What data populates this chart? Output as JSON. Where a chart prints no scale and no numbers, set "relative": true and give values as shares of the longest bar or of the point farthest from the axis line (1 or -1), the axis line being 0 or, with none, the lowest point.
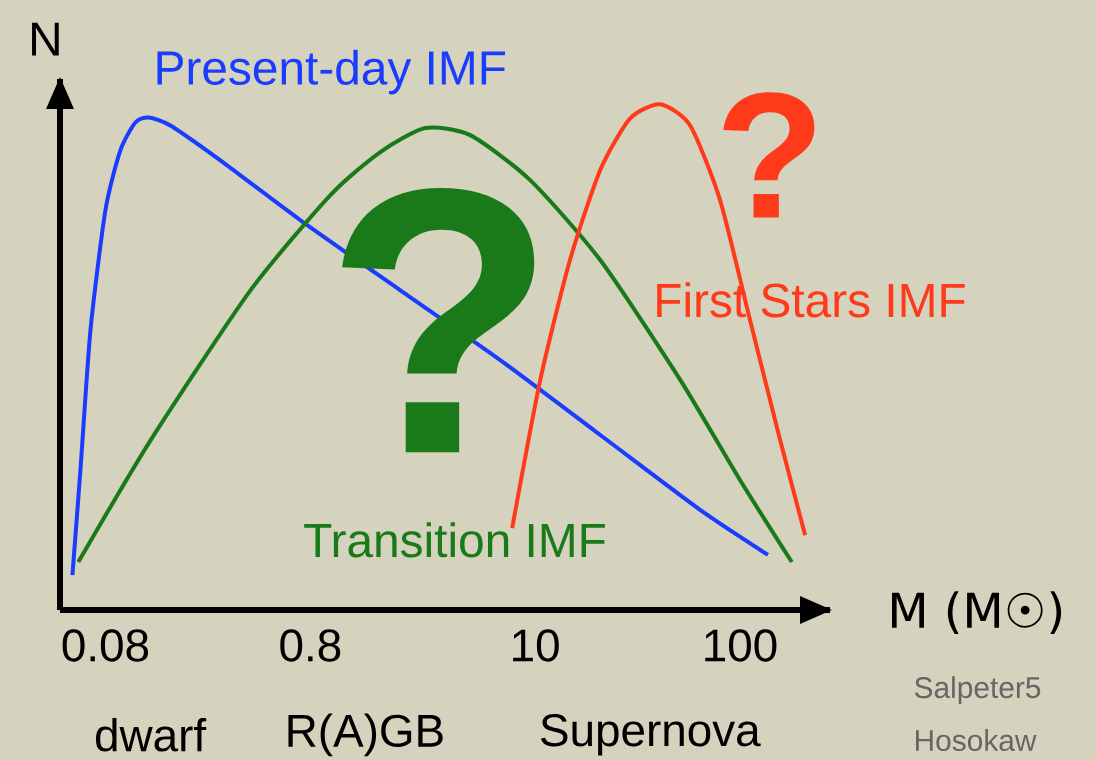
{
  "chart_data": {
    "type": "line",
    "relative": true,
    "log": "x",
    "xlabel": "M (M☉)",
    "ylabel": "N",
    "xlim": [
      0.048,
      275
    ],
    "xticks": [
      0.08,
      0.8,
      10,
      100
    ],
    "series": [
      {
        "name": "Present-day IMF",
        "color": "#1a3cff",
        "x": [
          0.0552,
          0.0604,
          0.0676,
          0.08,
          0.0946,
          0.112,
          0.13,
          0.166,
          0.291,
          0.714,
          2.2,
          6.76,
          20.8,
          63.9,
          137
        ],
        "values": [
          0.069,
          0.277,
          0.553,
          0.791,
          0.909,
          0.964,
          0.974,
          0.958,
          0.889,
          0.771,
          0.632,
          0.494,
          0.346,
          0.198,
          0.109
        ]
      },
      {
        "name": "Transition IMF",
        "color": "#1a7a1a",
        "x": [
          0.059,
          0.133,
          0.408,
          1.0,
          1.75,
          2.91,
          4.82,
          9.46,
          20.8,
          51.1,
          100,
          179
        ],
        "values": [
          0.095,
          0.336,
          0.632,
          0.82,
          0.905,
          0.953,
          0.939,
          0.85,
          0.692,
          0.455,
          0.257,
          0.095
        ]
      },
      {
        "name": "First Stars IMF",
        "color": "#ff3a1a",
        "x": [
          7.73,
          10.6,
          14.8,
          20.8,
          29.1,
          40.8,
          57.1,
          80.0,
          112,
          157,
          208
        ],
        "values": [
          0.162,
          0.455,
          0.692,
          0.87,
          0.972,
          1,
          0.958,
          0.81,
          0.573,
          0.336,
          0.148
        ]
      }
    ],
    "annotations": [
      "?",
      "?",
      "dwarf",
      "R(A)GB",
      "Supernova",
      "Salpeter5",
      "Hosokaw"
    ]
  }
}
